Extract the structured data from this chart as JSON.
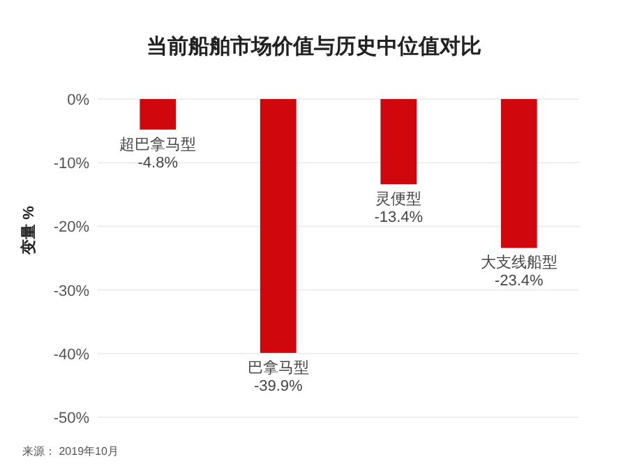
{
  "chart_data": {
    "type": "bar",
    "title": "当前船舶市场价值与历史中位值对比",
    "ylabel": "变量 %",
    "categories": [
      "超巴拿马型",
      "巴拿马型",
      "灵便型",
      "大支线船型"
    ],
    "values": [
      -4.8,
      -39.9,
      -13.4,
      -23.4
    ],
    "value_labels": [
      "-4.8%",
      "-39.9%",
      "-13.4%",
      "-23.4%"
    ],
    "color": "#d0080d",
    "ylim": [
      -50,
      0
    ],
    "yticks": [
      {
        "value": 0,
        "label": "0%"
      },
      {
        "value": -10,
        "label": "-10%"
      },
      {
        "value": -20,
        "label": "-20%"
      },
      {
        "value": -30,
        "label": "-30%"
      },
      {
        "value": -40,
        "label": "-40%"
      },
      {
        "value": -50,
        "label": "-50%"
      }
    ],
    "grid": "y",
    "annotations": [
      "来源： 2019年10月"
    ]
  }
}
